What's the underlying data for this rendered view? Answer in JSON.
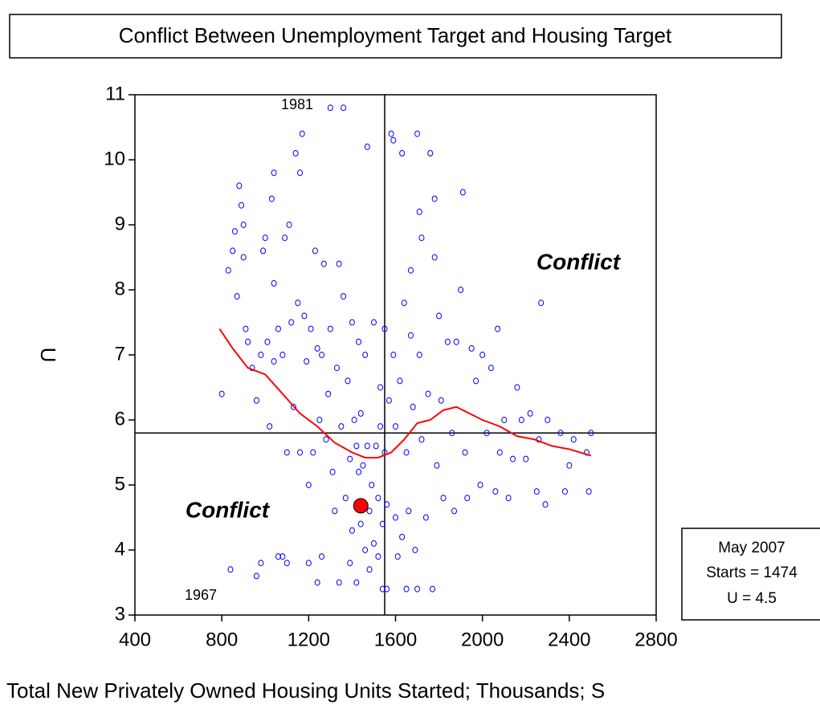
{
  "chart_data": {
    "type": "scatter",
    "title": "Conflict Between Unemployment Target and Housing Target",
    "x_label": "Total New Privately Owned Housing Units Started; Thousands; S",
    "y_label": "U",
    "xlim": [
      400,
      2800
    ],
    "ylim": [
      3,
      11
    ],
    "xticks": [
      400,
      800,
      1200,
      1600,
      2000,
      2400,
      2800
    ],
    "yticks": [
      3,
      4,
      5,
      6,
      7,
      8,
      9,
      10,
      11
    ],
    "color": "#0000ff",
    "x": [
      800,
      840,
      850,
      830,
      860,
      870,
      880,
      890,
      900,
      900,
      910,
      920,
      940,
      960,
      960,
      980,
      980,
      990,
      1000,
      1010,
      1020,
      1030,
      1040,
      1040,
      1040,
      1060,
      1060,
      1080,
      1080,
      1090,
      1100,
      1100,
      1110,
      1120,
      1130,
      1140,
      1150,
      1160,
      1160,
      1170,
      1180,
      1190,
      1200,
      1200,
      1210,
      1220,
      1230,
      1240,
      1240,
      1250,
      1260,
      1260,
      1270,
      1280,
      1290,
      1300,
      1300,
      1310,
      1320,
      1330,
      1340,
      1340,
      1350,
      1360,
      1360,
      1370,
      1380,
      1390,
      1390,
      1400,
      1400,
      1410,
      1420,
      1420,
      1430,
      1430,
      1440,
      1440,
      1450,
      1460,
      1460,
      1470,
      1470,
      1480,
      1480,
      1490,
      1500,
      1500,
      1510,
      1520,
      1520,
      1530,
      1530,
      1540,
      1540,
      1550,
      1550,
      1560,
      1560,
      1570,
      1580,
      1590,
      1590,
      1600,
      1600,
      1610,
      1620,
      1630,
      1630,
      1640,
      1650,
      1650,
      1660,
      1670,
      1670,
      1680,
      1690,
      1700,
      1700,
      1710,
      1710,
      1720,
      1720,
      1740,
      1750,
      1760,
      1770,
      1780,
      1780,
      1790,
      1800,
      1810,
      1820,
      1840,
      1860,
      1870,
      1880,
      1900,
      1910,
      1920,
      1930,
      1950,
      1970,
      1990,
      2000,
      2020,
      2040,
      2060,
      2070,
      2080,
      2100,
      2120,
      2140,
      2160,
      2180,
      2200,
      2220,
      2250,
      2260,
      2270,
      2290,
      2300,
      2360,
      2380,
      2400,
      2420,
      2480,
      2490,
      2500
    ],
    "values": [
      6.4,
      3.7,
      8.6,
      8.3,
      8.9,
      7.9,
      9.6,
      9.3,
      8.5,
      9.0,
      7.4,
      7.2,
      6.8,
      6.3,
      3.6,
      7.0,
      3.8,
      8.6,
      8.8,
      7.2,
      5.9,
      9.4,
      9.8,
      8.1,
      6.9,
      7.4,
      3.9,
      3.9,
      7.0,
      8.8,
      5.5,
      3.8,
      9.0,
      7.5,
      6.2,
      10.1,
      7.8,
      5.5,
      9.8,
      10.4,
      7.6,
      6.9,
      5.0,
      3.8,
      7.4,
      5.5,
      8.6,
      7.1,
      3.5,
      6.0,
      7.0,
      3.9,
      8.4,
      5.7,
      6.4,
      10.8,
      7.4,
      5.2,
      4.6,
      6.8,
      8.4,
      3.5,
      5.9,
      10.8,
      7.9,
      4.8,
      6.6,
      5.4,
      3.8,
      7.5,
      4.3,
      6.0,
      5.6,
      3.5,
      5.2,
      7.2,
      4.4,
      6.1,
      5.3,
      4.0,
      7.0,
      10.2,
      5.6,
      4.6,
      3.7,
      5.0,
      7.5,
      4.1,
      5.6,
      4.8,
      3.9,
      6.5,
      5.9,
      4.4,
      3.4,
      5.5,
      7.4,
      4.7,
      3.4,
      6.3,
      10.4,
      10.3,
      7.0,
      5.9,
      4.5,
      3.9,
      6.6,
      10.1,
      4.2,
      7.8,
      5.5,
      3.4,
      4.6,
      8.3,
      7.3,
      6.2,
      4.0,
      10.4,
      3.4,
      9.2,
      7.0,
      5.7,
      8.8,
      4.5,
      6.4,
      10.1,
      3.4,
      9.4,
      8.5,
      5.3,
      7.6,
      6.3,
      4.8,
      7.2,
      5.8,
      4.6,
      7.2,
      8.0,
      9.5,
      5.5,
      4.8,
      7.1,
      6.6,
      5.0,
      7.0,
      5.8,
      6.8,
      4.9,
      7.4,
      5.5,
      6.0,
      4.8,
      5.4,
      6.5,
      6.0,
      5.4,
      6.1,
      4.9,
      5.7,
      7.8,
      4.7,
      6.0,
      5.8,
      4.9,
      5.3,
      5.7,
      5.5,
      4.9,
      5.8
    ],
    "fit_line": {
      "color": "#ff0000",
      "x": [
        790,
        850,
        920,
        1000,
        1080,
        1160,
        1240,
        1320,
        1400,
        1460,
        1520,
        1580,
        1640,
        1700,
        1760,
        1820,
        1880,
        1940,
        2000,
        2080,
        2160,
        2240,
        2320,
        2400,
        2500
      ],
      "values": [
        7.4,
        7.1,
        6.8,
        6.7,
        6.4,
        6.1,
        5.9,
        5.65,
        5.5,
        5.42,
        5.42,
        5.5,
        5.7,
        5.95,
        6.0,
        6.15,
        6.2,
        6.1,
        6.0,
        5.9,
        5.75,
        5.7,
        5.6,
        5.55,
        5.45
      ]
    },
    "highlight": {
      "x": 1440,
      "y": 4.68,
      "color": "#ff0000"
    },
    "reference_lines": {
      "x": 1550,
      "y": 5.8
    },
    "annotations": [
      "1981",
      "1967",
      "Conflict",
      "Conflict"
    ],
    "info_box": [
      "May 2007",
      "Starts = 1474",
      "U = 4.5"
    ]
  }
}
